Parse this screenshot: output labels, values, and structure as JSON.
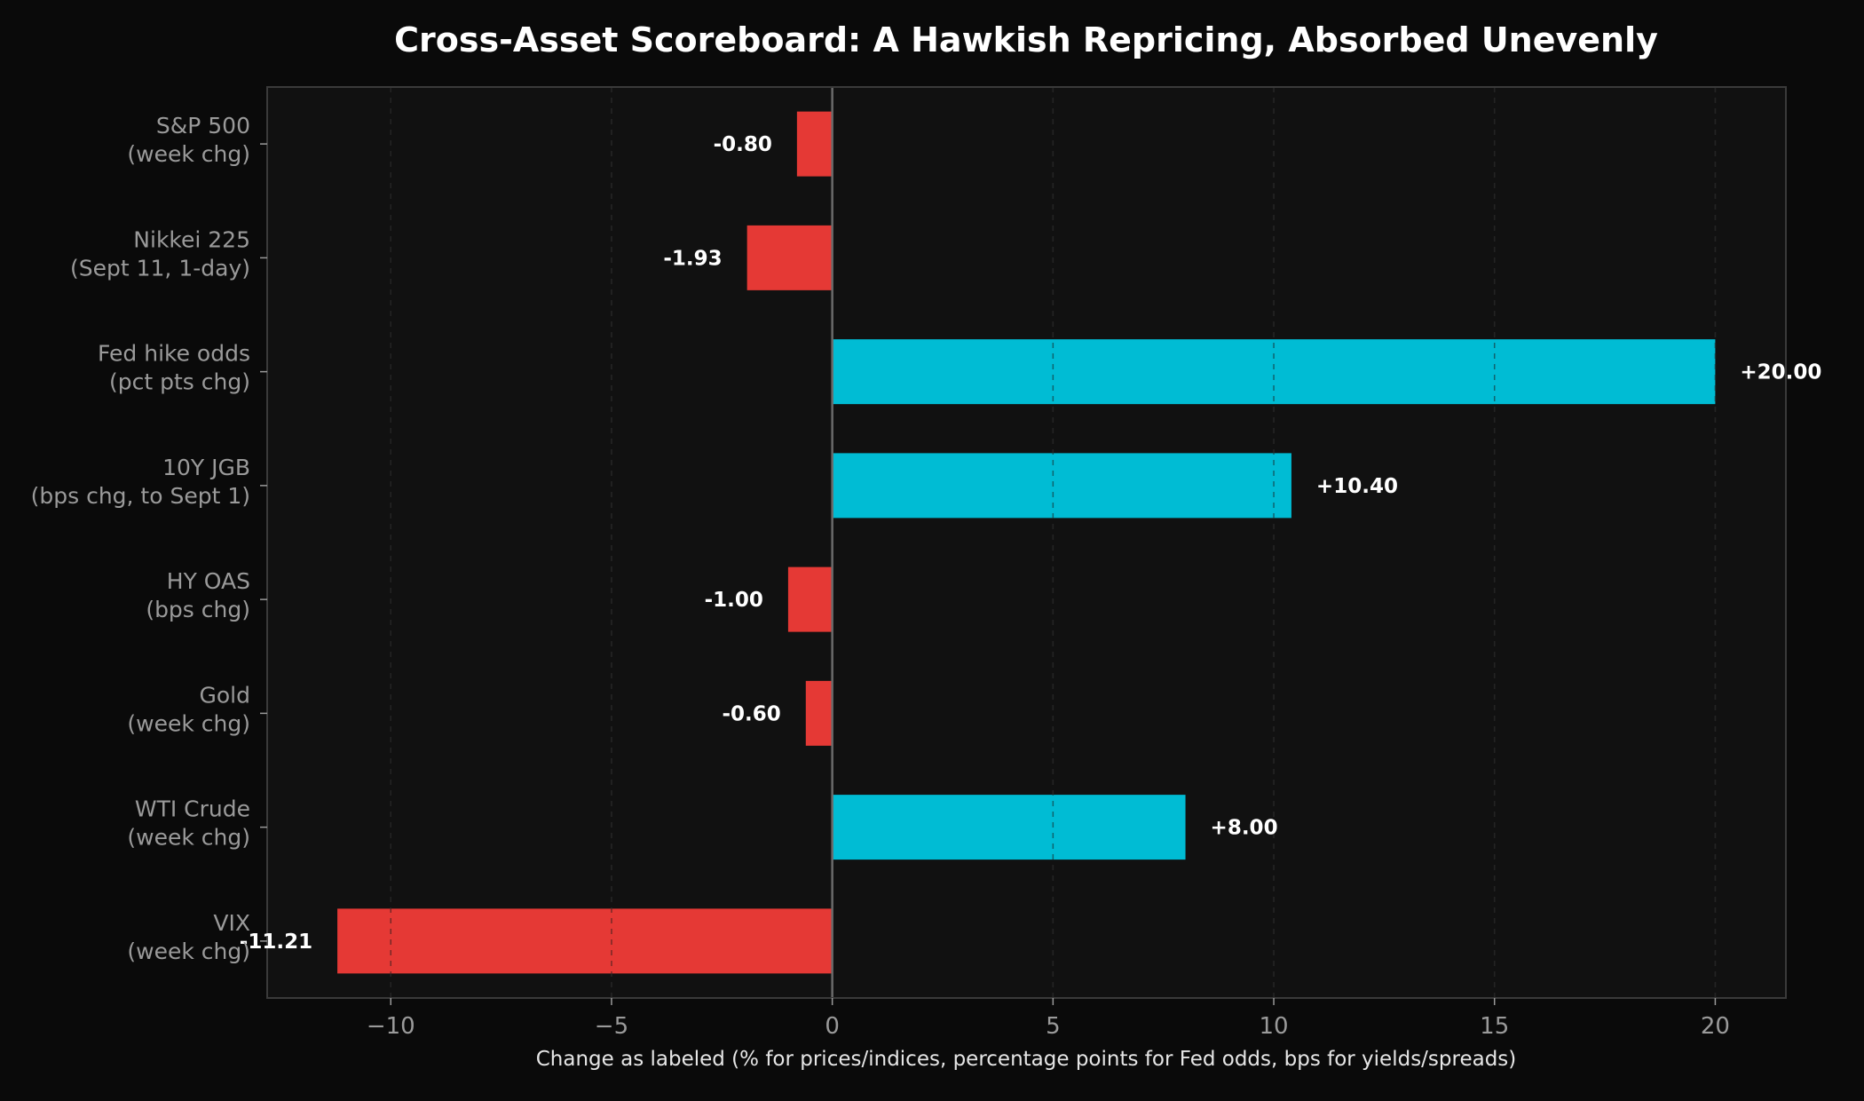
{
  "chart_data": {
    "type": "bar",
    "orientation": "horizontal",
    "title": "Cross-Asset Scoreboard: A Hawkish Repricing, Absorbed Unevenly",
    "xlabel": "Change as labeled (% for prices/indices, percentage points for Fed odds, bps for yields/spreads)",
    "ylabel": "",
    "xlim": [
      -12.8,
      21.6
    ],
    "xticks": [
      -10,
      -5,
      0,
      5,
      10,
      15,
      20
    ],
    "xtick_labels": [
      "−10",
      "−5",
      "0",
      "5",
      "10",
      "15",
      "20"
    ],
    "grid": "vertical dashed",
    "legend": "none",
    "colors": {
      "positive": "#00bcd4",
      "negative": "#e53935",
      "figure_background": "#0a0a0a",
      "axes_background": "#111111",
      "axes_border": "#3a3a3a",
      "zero_line": "#6a6a6a",
      "grid": "#2e2e2e"
    },
    "categories": [
      [
        "S&P 500",
        "(week chg)"
      ],
      [
        "Nikkei 225",
        "(Sept 11, 1-day)"
      ],
      [
        "Fed hike odds",
        "(pct pts chg)"
      ],
      [
        "10Y JGB",
        "(bps chg, to Sept 1)"
      ],
      [
        "HY OAS",
        "(bps chg)"
      ],
      [
        "Gold",
        "(week chg)"
      ],
      [
        "WTI Crude",
        "(week chg)"
      ],
      [
        "VIX",
        "(week chg)"
      ]
    ],
    "values": [
      -0.8,
      -1.93,
      20.0,
      10.4,
      -1.0,
      -0.6,
      8.0,
      -11.21
    ],
    "value_labels": [
      "-0.80",
      "-1.93",
      "+20.00",
      "+10.40",
      "-1.00",
      "-0.60",
      "+8.00",
      "-11.21"
    ]
  }
}
